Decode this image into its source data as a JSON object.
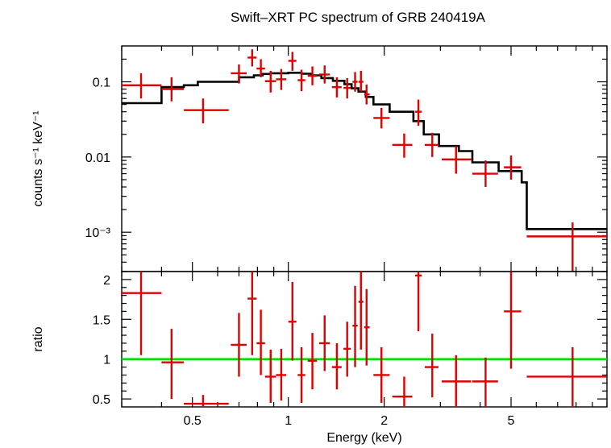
{
  "chart_data": [
    {
      "type": "line",
      "title": "Swift–XRT PC spectrum of GRB 240419A",
      "ylabel": "counts s⁻¹ keV⁻¹",
      "xscale": "log",
      "yscale": "log",
      "xlim": [
        0.3,
        10
      ],
      "ylim": [
        0.0003,
        0.3
      ],
      "yticks": [
        {
          "value": 0.1,
          "label": "0.1"
        },
        {
          "value": 0.01,
          "label": "0.01"
        },
        {
          "value": 0.001,
          "label": "10⁻³"
        }
      ],
      "data_points": {
        "color": "#e00000",
        "points": [
          {
            "x": 0.345,
            "xlo": 0.3,
            "xhi": 0.4,
            "y": 0.09,
            "ylo": 0.06,
            "yhi": 0.13
          },
          {
            "x": 0.43,
            "xlo": 0.4,
            "xhi": 0.47,
            "y": 0.08,
            "ylo": 0.055,
            "yhi": 0.115
          },
          {
            "x": 0.54,
            "xlo": 0.47,
            "xhi": 0.65,
            "y": 0.042,
            "ylo": 0.028,
            "yhi": 0.06
          },
          {
            "x": 0.7,
            "xlo": 0.66,
            "xhi": 0.74,
            "y": 0.13,
            "ylo": 0.095,
            "yhi": 0.17
          },
          {
            "x": 0.77,
            "xlo": 0.745,
            "xhi": 0.795,
            "y": 0.21,
            "ylo": 0.16,
            "yhi": 0.27
          },
          {
            "x": 0.82,
            "xlo": 0.795,
            "xhi": 0.845,
            "y": 0.15,
            "ylo": 0.115,
            "yhi": 0.2
          },
          {
            "x": 0.88,
            "xlo": 0.845,
            "xhi": 0.915,
            "y": 0.102,
            "ylo": 0.072,
            "yhi": 0.14
          },
          {
            "x": 0.95,
            "xlo": 0.915,
            "xhi": 0.985,
            "y": 0.108,
            "ylo": 0.078,
            "yhi": 0.148
          },
          {
            "x": 1.03,
            "xlo": 1.0,
            "xhi": 1.06,
            "y": 0.19,
            "ylo": 0.14,
            "yhi": 0.25
          },
          {
            "x": 1.1,
            "xlo": 1.07,
            "xhi": 1.13,
            "y": 0.105,
            "ylo": 0.075,
            "yhi": 0.145
          },
          {
            "x": 1.19,
            "xlo": 1.15,
            "xhi": 1.23,
            "y": 0.12,
            "ylo": 0.09,
            "yhi": 0.16
          },
          {
            "x": 1.3,
            "xlo": 1.25,
            "xhi": 1.35,
            "y": 0.125,
            "ylo": 0.095,
            "yhi": 0.165
          },
          {
            "x": 1.42,
            "xlo": 1.37,
            "xhi": 1.47,
            "y": 0.085,
            "ylo": 0.062,
            "yhi": 0.115
          },
          {
            "x": 1.53,
            "xlo": 1.49,
            "xhi": 1.57,
            "y": 0.083,
            "ylo": 0.06,
            "yhi": 0.112
          },
          {
            "x": 1.62,
            "xlo": 1.59,
            "xhi": 1.65,
            "y": 0.1,
            "ylo": 0.074,
            "yhi": 0.135
          },
          {
            "x": 1.69,
            "xlo": 1.66,
            "xhi": 1.72,
            "y": 0.1,
            "ylo": 0.074,
            "yhi": 0.14
          },
          {
            "x": 1.76,
            "xlo": 1.73,
            "xhi": 1.8,
            "y": 0.068,
            "ylo": 0.05,
            "yhi": 0.092
          },
          {
            "x": 1.96,
            "xlo": 1.85,
            "xhi": 2.08,
            "y": 0.033,
            "ylo": 0.024,
            "yhi": 0.045
          },
          {
            "x": 2.31,
            "xlo": 2.12,
            "xhi": 2.45,
            "y": 0.0145,
            "ylo": 0.0098,
            "yhi": 0.0205
          },
          {
            "x": 2.56,
            "xlo": 2.5,
            "xhi": 2.62,
            "y": 0.04,
            "ylo": 0.026,
            "yhi": 0.058
          },
          {
            "x": 2.83,
            "xlo": 2.68,
            "xhi": 2.96,
            "y": 0.0145,
            "ylo": 0.01,
            "yhi": 0.021
          },
          {
            "x": 3.36,
            "xlo": 3.03,
            "xhi": 3.75,
            "y": 0.0093,
            "ylo": 0.006,
            "yhi": 0.014
          },
          {
            "x": 4.16,
            "xlo": 3.78,
            "xhi": 4.55,
            "y": 0.006,
            "ylo": 0.004,
            "yhi": 0.009
          },
          {
            "x": 5.0,
            "xlo": 4.75,
            "xhi": 5.38,
            "y": 0.0073,
            "ylo": 0.005,
            "yhi": 0.0105
          },
          {
            "x": 7.8,
            "xlo": 5.6,
            "xhi": 10.0,
            "y": 0.00088,
            "ylo": 0.0003,
            "yhi": 0.00135
          }
        ]
      },
      "model": {
        "color": "#000000",
        "steps": [
          [
            0.3,
            0.052
          ],
          [
            0.4,
            0.085
          ],
          [
            0.47,
            0.09
          ],
          [
            0.52,
            0.1
          ],
          [
            0.7,
            0.115
          ],
          [
            0.78,
            0.122
          ],
          [
            0.83,
            0.127
          ],
          [
            0.88,
            0.13
          ],
          [
            1.0,
            0.132
          ],
          [
            1.1,
            0.128
          ],
          [
            1.18,
            0.122
          ],
          [
            1.27,
            0.112
          ],
          [
            1.38,
            0.103
          ],
          [
            1.5,
            0.093
          ],
          [
            1.58,
            0.082
          ],
          [
            1.66,
            0.074
          ],
          [
            1.75,
            0.063
          ],
          [
            1.85,
            0.05
          ],
          [
            2.08,
            0.04
          ],
          [
            2.47,
            0.03
          ],
          [
            2.66,
            0.02
          ],
          [
            2.97,
            0.014
          ],
          [
            3.43,
            0.012
          ],
          [
            3.78,
            0.0085
          ],
          [
            4.57,
            0.0065
          ],
          [
            5.4,
            0.0046
          ],
          [
            5.6,
            0.0011
          ],
          [
            10.0,
            0.0011
          ]
        ]
      }
    },
    {
      "type": "scatter",
      "xlabel": "Energy (keV)",
      "ylabel": "ratio",
      "xscale": "log",
      "xlim": [
        0.3,
        10
      ],
      "ylim": [
        0.4,
        2.1
      ],
      "xticks": [
        {
          "value": 0.5,
          "label": "0.5"
        },
        {
          "value": 1,
          "label": "1"
        },
        {
          "value": 2,
          "label": "2"
        },
        {
          "value": 5,
          "label": "5"
        }
      ],
      "yticks": [
        {
          "value": 0.5,
          "label": "0.5"
        },
        {
          "value": 1.0,
          "label": "1"
        },
        {
          "value": 1.5,
          "label": "1.5"
        },
        {
          "value": 2.0,
          "label": "2"
        }
      ],
      "reference_line": {
        "y": 1.0,
        "color": "#00e000"
      },
      "data_points": {
        "color": "#e00000",
        "points": [
          {
            "x": 0.345,
            "xlo": 0.3,
            "xhi": 0.4,
            "y": 1.83,
            "ylo": 1.05,
            "yhi": 2.15
          },
          {
            "x": 0.43,
            "xlo": 0.4,
            "xhi": 0.47,
            "y": 0.96,
            "ylo": 0.5,
            "yhi": 1.38
          },
          {
            "x": 0.54,
            "xlo": 0.47,
            "xhi": 0.65,
            "y": 0.44,
            "ylo": 0.38,
            "yhi": 0.55
          },
          {
            "x": 0.7,
            "xlo": 0.66,
            "xhi": 0.74,
            "y": 1.18,
            "ylo": 0.78,
            "yhi": 1.58
          },
          {
            "x": 0.77,
            "xlo": 0.745,
            "xhi": 0.795,
            "y": 1.76,
            "ylo": 1.05,
            "yhi": 2.1
          },
          {
            "x": 0.82,
            "xlo": 0.795,
            "xhi": 0.845,
            "y": 1.2,
            "ylo": 0.8,
            "yhi": 1.62
          },
          {
            "x": 0.88,
            "xlo": 0.845,
            "xhi": 0.915,
            "y": 0.78,
            "ylo": 0.45,
            "yhi": 1.12
          },
          {
            "x": 0.95,
            "xlo": 0.915,
            "xhi": 0.985,
            "y": 0.8,
            "ylo": 0.48,
            "yhi": 1.13
          },
          {
            "x": 1.03,
            "xlo": 1.0,
            "xhi": 1.06,
            "y": 1.47,
            "ylo": 0.98,
            "yhi": 1.97
          },
          {
            "x": 1.1,
            "xlo": 1.07,
            "xhi": 1.13,
            "y": 0.8,
            "ylo": 0.45,
            "yhi": 1.15
          },
          {
            "x": 1.19,
            "xlo": 1.15,
            "xhi": 1.23,
            "y": 0.98,
            "ylo": 0.62,
            "yhi": 1.33
          },
          {
            "x": 1.3,
            "xlo": 1.25,
            "xhi": 1.35,
            "y": 1.2,
            "ylo": 0.85,
            "yhi": 1.55
          },
          {
            "x": 1.42,
            "xlo": 1.37,
            "xhi": 1.47,
            "y": 0.9,
            "ylo": 0.62,
            "yhi": 1.2
          },
          {
            "x": 1.53,
            "xlo": 1.49,
            "xhi": 1.57,
            "y": 1.13,
            "ylo": 0.78,
            "yhi": 1.47
          },
          {
            "x": 1.62,
            "xlo": 1.59,
            "xhi": 1.65,
            "y": 1.42,
            "ylo": 0.9,
            "yhi": 1.92
          },
          {
            "x": 1.69,
            "xlo": 1.66,
            "xhi": 1.72,
            "y": 1.72,
            "ylo": 1.12,
            "yhi": 2.1
          },
          {
            "x": 1.76,
            "xlo": 1.73,
            "xhi": 1.8,
            "y": 1.4,
            "ylo": 0.92,
            "yhi": 1.88
          },
          {
            "x": 1.96,
            "xlo": 1.85,
            "xhi": 2.08,
            "y": 0.8,
            "ylo": 0.45,
            "yhi": 1.15
          },
          {
            "x": 2.31,
            "xlo": 2.12,
            "xhi": 2.45,
            "y": 0.53,
            "ylo": 0.38,
            "yhi": 0.78
          },
          {
            "x": 2.56,
            "xlo": 2.5,
            "xhi": 2.62,
            "y": 2.05,
            "ylo": 1.35,
            "yhi": 2.12
          },
          {
            "x": 2.83,
            "xlo": 2.68,
            "xhi": 2.96,
            "y": 0.9,
            "ylo": 0.52,
            "yhi": 1.32
          },
          {
            "x": 3.36,
            "xlo": 3.03,
            "xhi": 3.75,
            "y": 0.72,
            "ylo": 0.4,
            "yhi": 1.05
          },
          {
            "x": 4.16,
            "xlo": 3.78,
            "xhi": 4.55,
            "y": 0.72,
            "ylo": 0.4,
            "yhi": 1.02
          },
          {
            "x": 5.0,
            "xlo": 4.75,
            "xhi": 5.38,
            "y": 1.6,
            "ylo": 0.88,
            "yhi": 2.1
          },
          {
            "x": 7.8,
            "xlo": 5.6,
            "xhi": 10.0,
            "y": 0.78,
            "ylo": 0.4,
            "yhi": 1.15
          }
        ]
      }
    }
  ]
}
